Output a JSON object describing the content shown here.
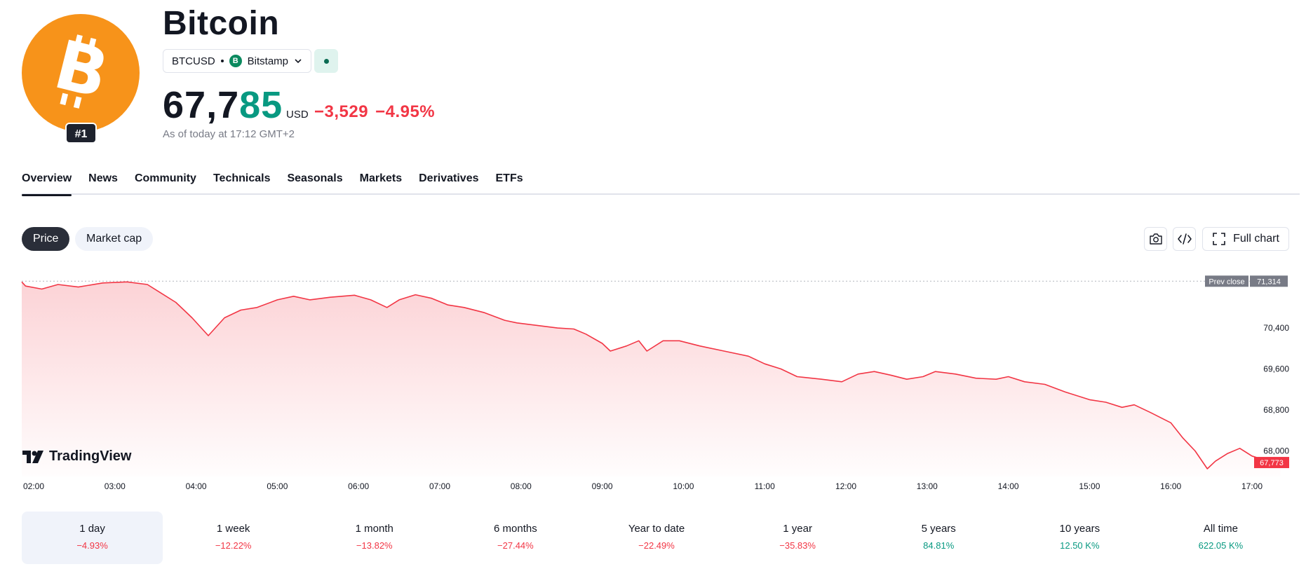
{
  "asset": {
    "name": "Bitcoin",
    "rank": "#1",
    "symbol": "BTCUSD",
    "exchange": "Bitstamp",
    "exchange_icon": "B",
    "price_main": "67,7",
    "price_highlight": "85",
    "currency": "USD",
    "change_abs": "−3,529",
    "change_pct": "−4.95%",
    "as_of": "As of today at 17:12 GMT+2",
    "brand_color": "#f7931a"
  },
  "tabs": [
    {
      "label": "Overview",
      "active": true
    },
    {
      "label": "News"
    },
    {
      "label": "Community"
    },
    {
      "label": "Technicals"
    },
    {
      "label": "Seasonals"
    },
    {
      "label": "Markets"
    },
    {
      "label": "Derivatives"
    },
    {
      "label": "ETFs"
    }
  ],
  "chart_controls": {
    "price_label": "Price",
    "marketcap_label": "Market cap",
    "full_chart_label": "Full chart",
    "icons": [
      "camera-icon",
      "embed-code-icon",
      "fullscreen-icon"
    ]
  },
  "chart_data": {
    "type": "area",
    "line_color": "#f23645",
    "fill_color": "#f23645",
    "x_ticks": [
      "02:00",
      "03:00",
      "04:00",
      "05:00",
      "06:00",
      "07:00",
      "08:00",
      "09:00",
      "10:00",
      "11:00",
      "12:00",
      "13:00",
      "14:00",
      "15:00",
      "16:00",
      "17:00"
    ],
    "y_ticks": [
      "70,400",
      "69,600",
      "68,800",
      "68,000"
    ],
    "y_tick_values": [
      70400,
      69600,
      68800,
      68000
    ],
    "ylim": [
      67500,
      71400
    ],
    "prev_close_label": "Prev close",
    "prev_close_value": "71,314",
    "prev_close": 71314,
    "last_value_label": "67,773",
    "last_value": 67773,
    "watermark": "TradingView",
    "series": [
      {
        "values": [
          [
            1.7,
            71300
          ],
          [
            1.9,
            71220
          ],
          [
            2.1,
            71160
          ],
          [
            2.3,
            71250
          ],
          [
            2.55,
            71200
          ],
          [
            2.85,
            71280
          ],
          [
            3.15,
            71300
          ],
          [
            3.4,
            71250
          ],
          [
            3.55,
            71100
          ],
          [
            3.75,
            70900
          ],
          [
            3.95,
            70600
          ],
          [
            4.15,
            70250
          ],
          [
            4.35,
            70600
          ],
          [
            4.55,
            70750
          ],
          [
            4.75,
            70800
          ],
          [
            5.0,
            70950
          ],
          [
            5.2,
            71020
          ],
          [
            5.4,
            70950
          ],
          [
            5.65,
            71000
          ],
          [
            5.95,
            71040
          ],
          [
            6.15,
            70950
          ],
          [
            6.35,
            70800
          ],
          [
            6.5,
            70950
          ],
          [
            6.7,
            71050
          ],
          [
            6.9,
            70980
          ],
          [
            7.1,
            70850
          ],
          [
            7.3,
            70800
          ],
          [
            7.55,
            70700
          ],
          [
            7.8,
            70550
          ],
          [
            7.95,
            70500
          ],
          [
            8.2,
            70450
          ],
          [
            8.45,
            70400
          ],
          [
            8.65,
            70380
          ],
          [
            8.8,
            70280
          ],
          [
            9.0,
            70100
          ],
          [
            9.1,
            69950
          ],
          [
            9.3,
            70050
          ],
          [
            9.45,
            70150
          ],
          [
            9.55,
            69950
          ],
          [
            9.75,
            70150
          ],
          [
            9.95,
            70150
          ],
          [
            10.2,
            70050
          ],
          [
            10.5,
            69950
          ],
          [
            10.8,
            69850
          ],
          [
            11.0,
            69700
          ],
          [
            11.2,
            69600
          ],
          [
            11.4,
            69450
          ],
          [
            11.7,
            69400
          ],
          [
            11.95,
            69350
          ],
          [
            12.15,
            69500
          ],
          [
            12.35,
            69550
          ],
          [
            12.55,
            69480
          ],
          [
            12.75,
            69400
          ],
          [
            12.95,
            69450
          ],
          [
            13.1,
            69550
          ],
          [
            13.35,
            69500
          ],
          [
            13.6,
            69420
          ],
          [
            13.85,
            69400
          ],
          [
            14.0,
            69450
          ],
          [
            14.2,
            69350
          ],
          [
            14.45,
            69300
          ],
          [
            14.7,
            69150
          ],
          [
            15.0,
            69000
          ],
          [
            15.2,
            68950
          ],
          [
            15.4,
            68850
          ],
          [
            15.55,
            68900
          ],
          [
            15.75,
            68750
          ],
          [
            16.0,
            68550
          ],
          [
            16.15,
            68250
          ],
          [
            16.3,
            68000
          ],
          [
            16.45,
            67650
          ],
          [
            16.55,
            67800
          ],
          [
            16.7,
            67950
          ],
          [
            16.85,
            68050
          ],
          [
            17.0,
            67900
          ],
          [
            17.2,
            67800
          ],
          [
            17.35,
            67773
          ]
        ]
      }
    ]
  },
  "periods": [
    {
      "label": "1 day",
      "value": "−4.93%",
      "dir": "neg",
      "active": true
    },
    {
      "label": "1 week",
      "value": "−12.22%",
      "dir": "neg"
    },
    {
      "label": "1 month",
      "value": "−13.82%",
      "dir": "neg"
    },
    {
      "label": "6 months",
      "value": "−27.44%",
      "dir": "neg"
    },
    {
      "label": "Year to date",
      "value": "−22.49%",
      "dir": "neg"
    },
    {
      "label": "1 year",
      "value": "−35.83%",
      "dir": "neg"
    },
    {
      "label": "5 years",
      "value": "84.81%",
      "dir": "pos"
    },
    {
      "label": "10 years",
      "value": "12.50 K%",
      "dir": "pos"
    },
    {
      "label": "All time",
      "value": "622.05 K%",
      "dir": "pos"
    }
  ]
}
